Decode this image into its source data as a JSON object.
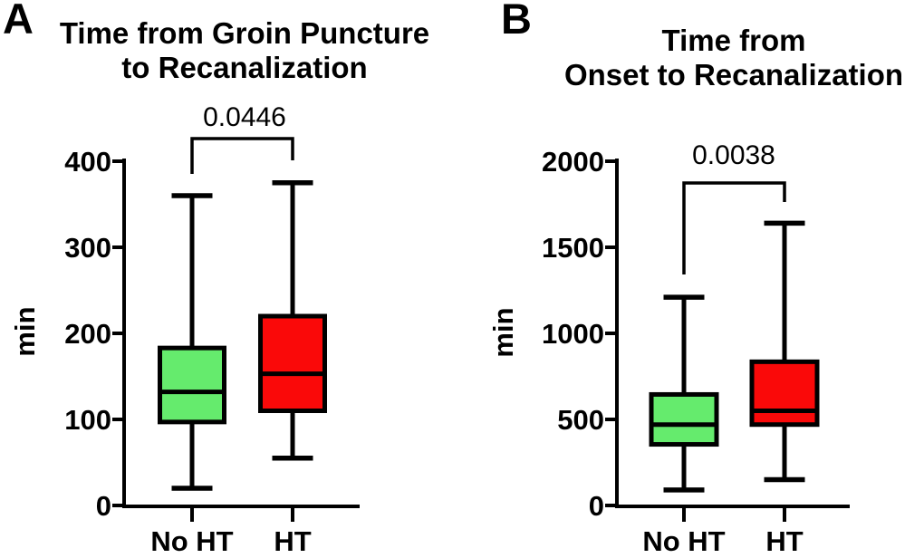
{
  "figure": {
    "background": "#ffffff",
    "panels": [
      {
        "letter": "A",
        "title_lines": [
          "Time from Groin Puncture",
          "to Recanalization"
        ]
      },
      {
        "letter": "B",
        "title_lines": [
          "Time from",
          "Onset to Recanalization"
        ]
      }
    ]
  },
  "chart_data": [
    {
      "type": "box",
      "title": "Time from Groin Puncture to Recanalization",
      "ylabel": "min",
      "xlabel": "",
      "ylim": [
        0,
        400
      ],
      "yticks": [
        0,
        100,
        200,
        300,
        400
      ],
      "categories": [
        "No HT",
        "HT"
      ],
      "grid": false,
      "legend": false,
      "p_value": "0.0446",
      "comparison": [
        "No HT",
        "HT"
      ],
      "series": [
        {
          "name": "No HT",
          "color": "#65EB6D",
          "whisker_min": 20,
          "q1": 97,
          "median": 132,
          "q3": 183,
          "whisker_max": 360
        },
        {
          "name": "HT",
          "color": "#FA0909",
          "whisker_min": 55,
          "q1": 110,
          "median": 153,
          "q3": 220,
          "whisker_max": 375
        }
      ]
    },
    {
      "type": "box",
      "title": "Time from Onset to Recanalization",
      "ylabel": "min",
      "xlabel": "",
      "ylim": [
        0,
        2000
      ],
      "yticks": [
        0,
        500,
        1000,
        1500,
        2000
      ],
      "categories": [
        "No HT",
        "HT"
      ],
      "grid": false,
      "legend": false,
      "p_value": "0.0038",
      "comparison": [
        "No HT",
        "HT"
      ],
      "series": [
        {
          "name": "No HT",
          "color": "#65EB6D",
          "whisker_min": 90,
          "q1": 355,
          "median": 470,
          "q3": 645,
          "whisker_max": 1210
        },
        {
          "name": "HT",
          "color": "#FA0909",
          "whisker_min": 150,
          "q1": 470,
          "median": 550,
          "q3": 835,
          "whisker_max": 1640
        }
      ]
    }
  ]
}
